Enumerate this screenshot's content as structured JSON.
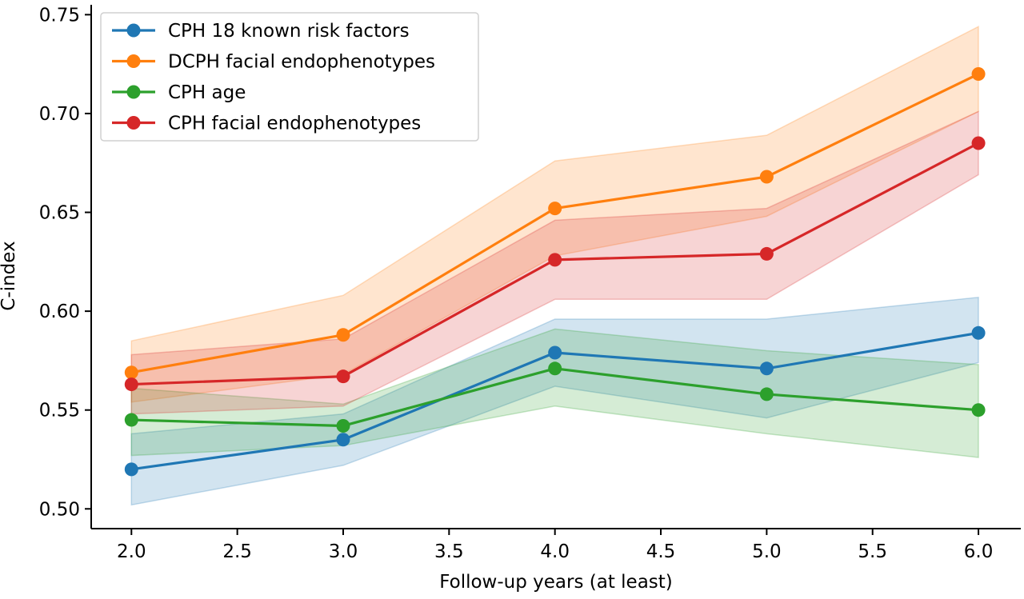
{
  "chart_data": {
    "type": "line",
    "title": "",
    "xlabel": "Follow-up years (at least)",
    "ylabel": "C-index",
    "xlim": [
      1.81,
      6.2
    ],
    "ylim": [
      0.49,
      0.755
    ],
    "x": [
      2.0,
      3.0,
      4.0,
      5.0,
      6.0
    ],
    "x_ticks": [
      "2.0",
      "2.5",
      "3.0",
      "3.5",
      "4.0",
      "4.5",
      "5.0",
      "5.5",
      "6.0"
    ],
    "y_ticks": [
      "0.50",
      "0.55",
      "0.60",
      "0.65",
      "0.70",
      "0.75"
    ],
    "grid": false,
    "legend_position": "top-left",
    "series": [
      {
        "name": "CPH 18 known risk factors",
        "color": "#1f77b4",
        "values": [
          0.52,
          0.535,
          0.579,
          0.571,
          0.589
        ],
        "lower": [
          0.502,
          0.522,
          0.562,
          0.546,
          0.574
        ],
        "upper": [
          0.538,
          0.548,
          0.596,
          0.596,
          0.607
        ]
      },
      {
        "name": "DCPH facial endophenotypes",
        "color": "#ff7f0e",
        "values": [
          0.569,
          0.588,
          0.652,
          0.668,
          0.72
        ],
        "lower": [
          0.554,
          0.568,
          0.628,
          0.648,
          0.701
        ],
        "upper": [
          0.585,
          0.608,
          0.676,
          0.689,
          0.744
        ]
      },
      {
        "name": "CPH age",
        "color": "#2ca02c",
        "values": [
          0.545,
          0.542,
          0.571,
          0.558,
          0.55
        ],
        "lower": [
          0.527,
          0.532,
          0.552,
          0.538,
          0.526
        ],
        "upper": [
          0.561,
          0.553,
          0.591,
          0.58,
          0.573
        ]
      },
      {
        "name": "CPH facial endophenotypes",
        "color": "#d62728",
        "values": [
          0.563,
          0.567,
          0.626,
          0.629,
          0.685
        ],
        "lower": [
          0.548,
          0.552,
          0.606,
          0.606,
          0.669
        ],
        "upper": [
          0.578,
          0.586,
          0.646,
          0.652,
          0.701
        ]
      }
    ]
  }
}
